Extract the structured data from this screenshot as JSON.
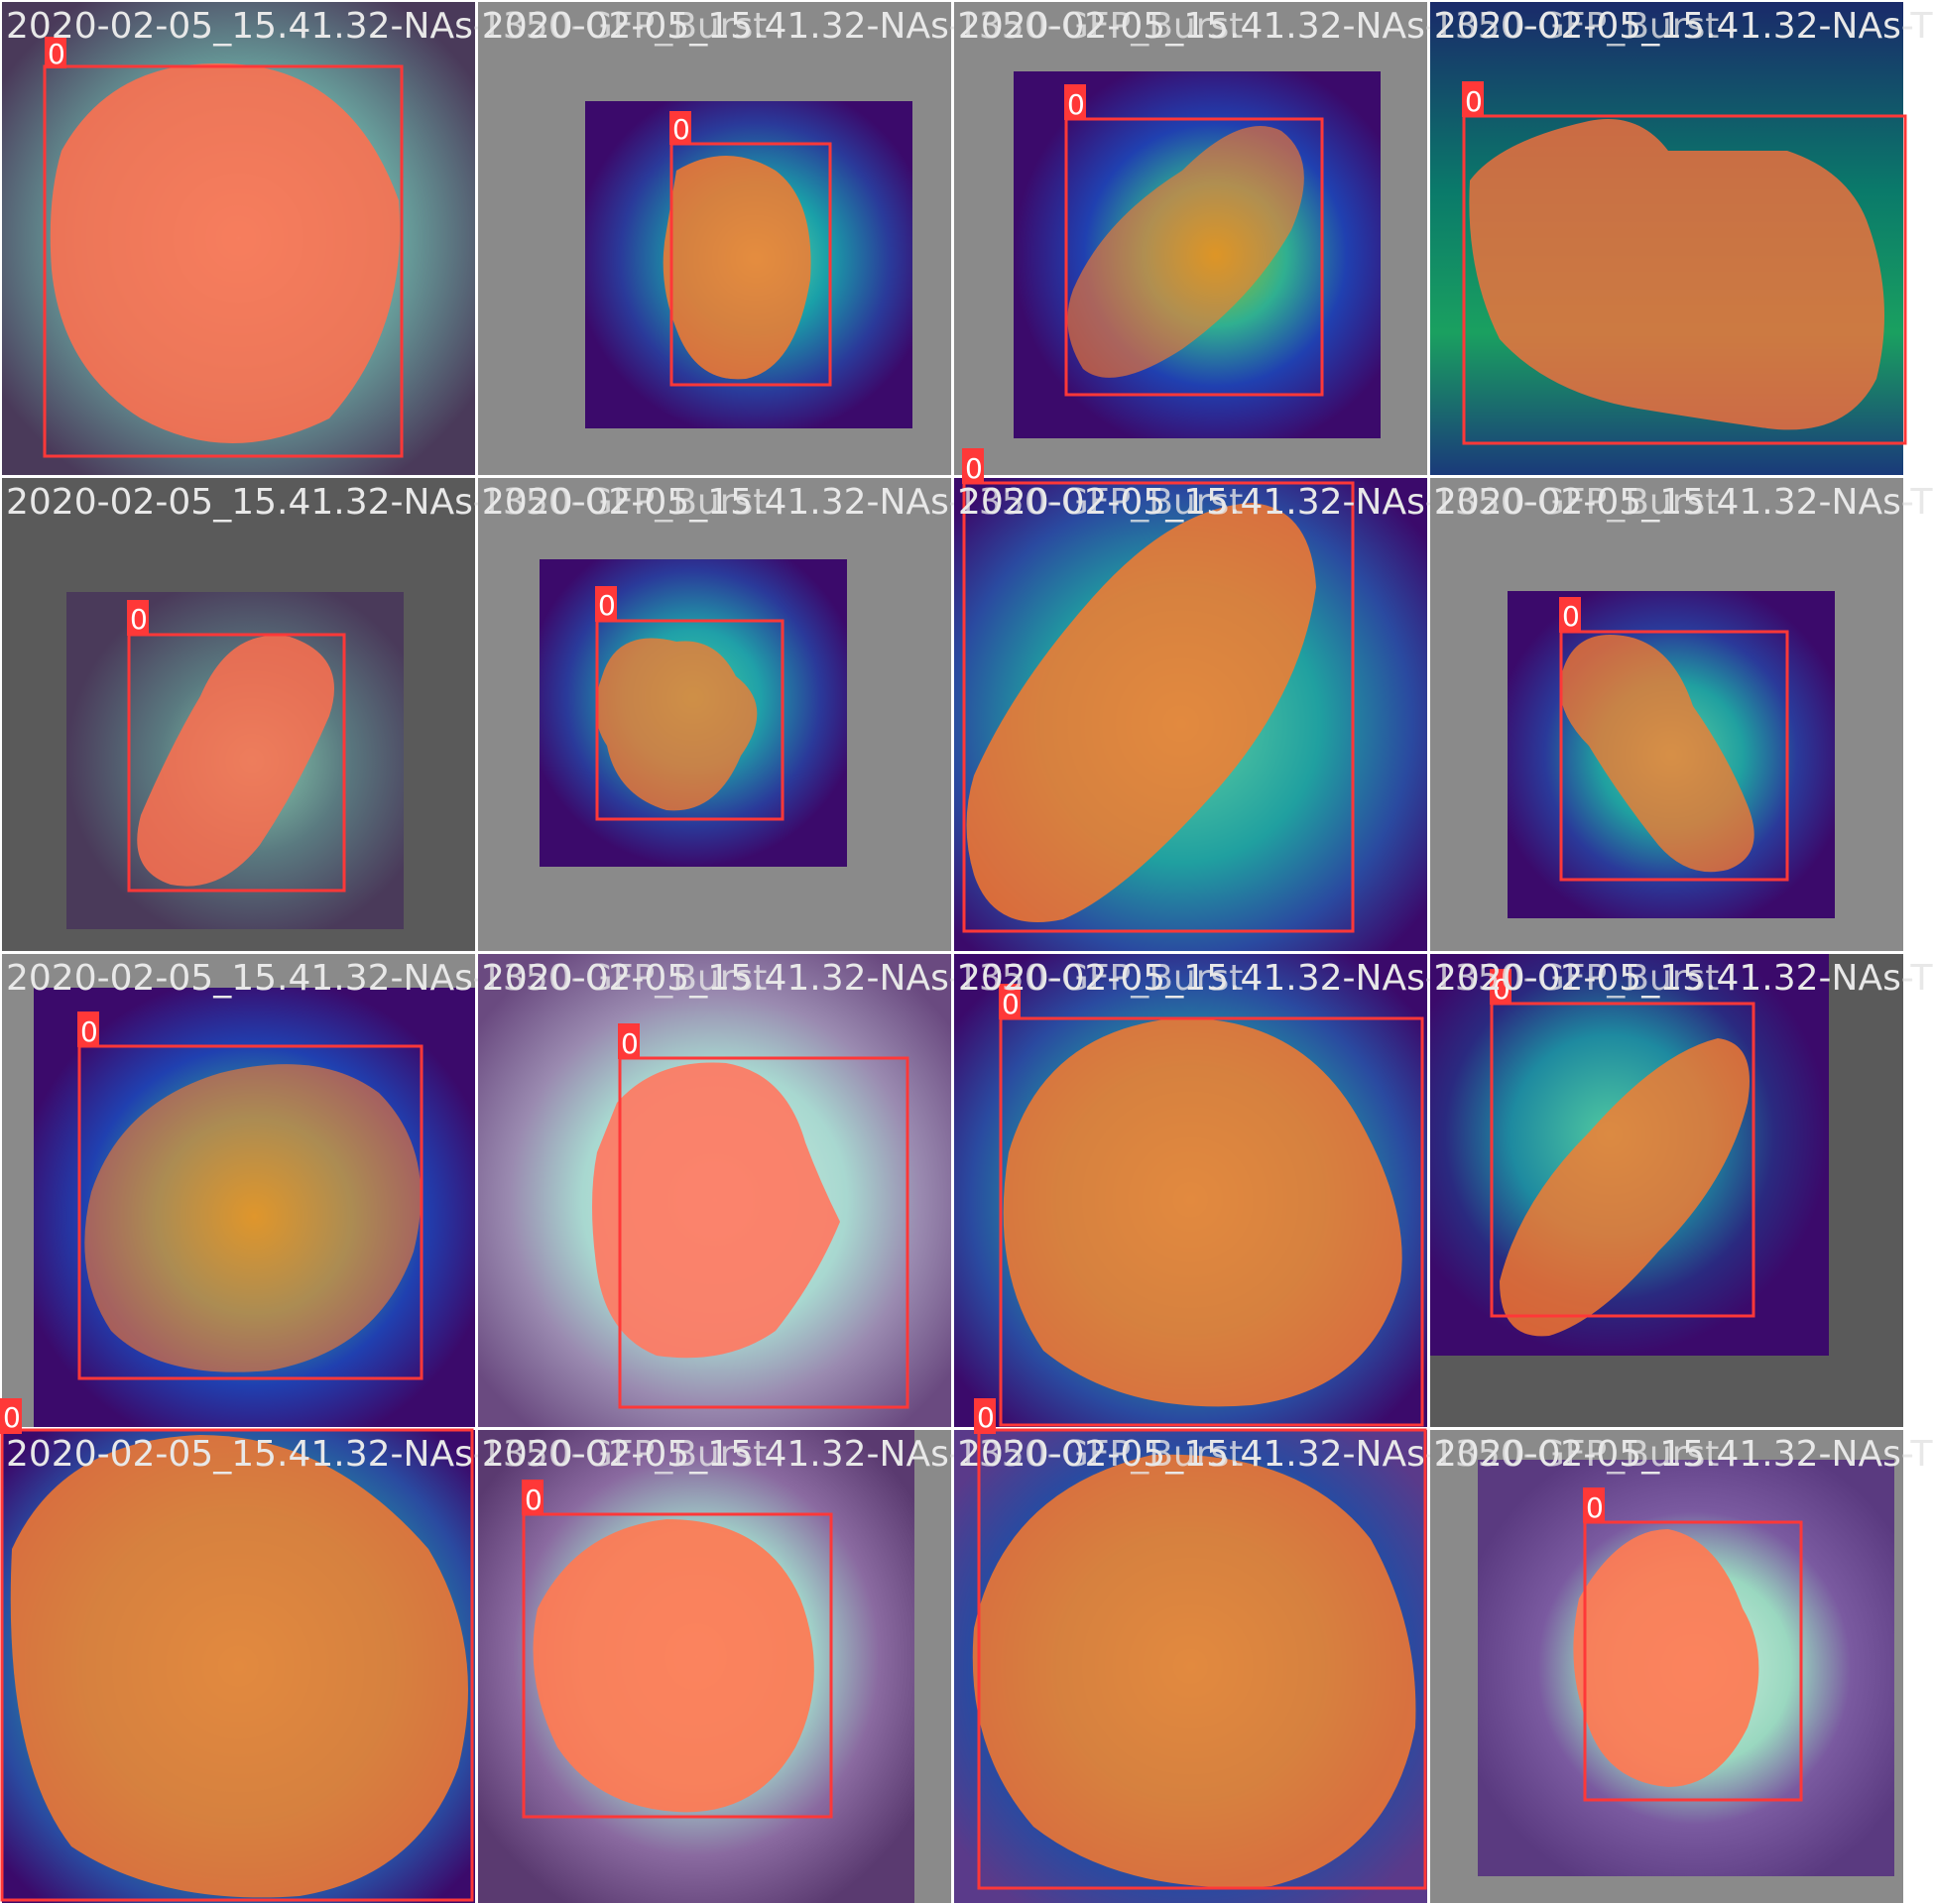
{
  "caption_label": "2020-02-05_15.41.32-NAs-T",
  "caption_overlap_label": "1350-GFP_Burst",
  "class_label": "0",
  "colors": {
    "grid_line": "#ffffff",
    "background_gray": "#8a8a8a",
    "background_dark_gray": "#5a5a5a",
    "box_red": "#ff3838",
    "mask_salmon": "#ff6f4e",
    "mask_orange": "#ff7a2a",
    "viridis_dark": "#3b0a6b",
    "viridis_mid": "#20a0a0",
    "viridis_light": "#7fe0a0"
  },
  "tiles": [
    {
      "name": "tile-r1c1",
      "label": "0",
      "palette": "gray-teal"
    },
    {
      "name": "tile-r1c2",
      "label": "0",
      "palette": "viridis"
    },
    {
      "name": "tile-r1c3",
      "label": "0",
      "palette": "viridis"
    },
    {
      "name": "tile-r1c4",
      "label": "0",
      "palette": "viridis-green"
    },
    {
      "name": "tile-r2c1",
      "label": "0",
      "palette": "gray-teal"
    },
    {
      "name": "tile-r2c2",
      "label": "0",
      "palette": "viridis"
    },
    {
      "name": "tile-r2c3",
      "label": "0",
      "palette": "viridis"
    },
    {
      "name": "tile-r2c4",
      "label": "0",
      "palette": "viridis"
    },
    {
      "name": "tile-r3c1",
      "label": "0",
      "palette": "viridis"
    },
    {
      "name": "tile-r3c2",
      "label": "0",
      "palette": "purple-mint"
    },
    {
      "name": "tile-r3c3",
      "label": "0",
      "palette": "viridis"
    },
    {
      "name": "tile-r3c4",
      "label": "0",
      "palette": "viridis"
    },
    {
      "name": "tile-r4c1",
      "label": "0",
      "palette": "viridis"
    },
    {
      "name": "tile-r4c2",
      "label": "0",
      "palette": "purple-mint"
    },
    {
      "name": "tile-r4c3",
      "label": "0",
      "palette": "viridis"
    },
    {
      "name": "tile-r4c4",
      "label": "0",
      "palette": "purple-mint"
    }
  ]
}
